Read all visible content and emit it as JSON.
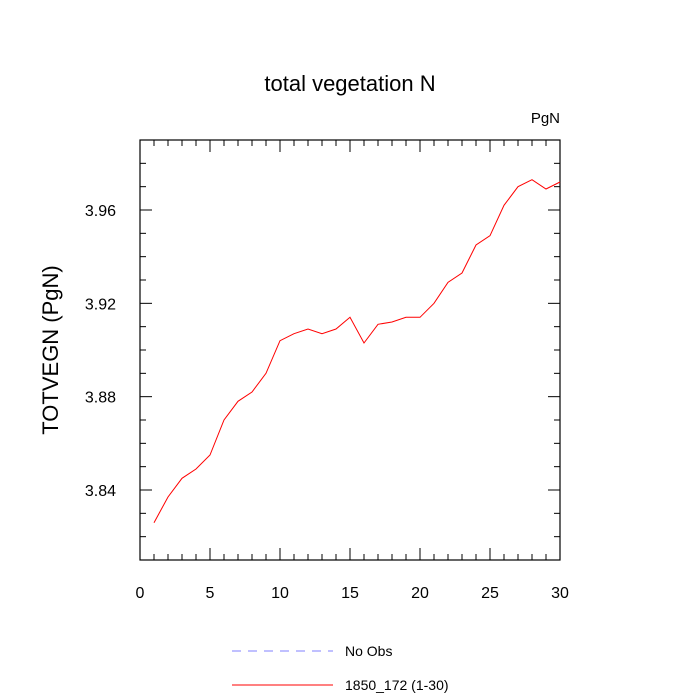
{
  "chart_data": {
    "type": "line",
    "title": "total vegetation N",
    "units_label": "PgN",
    "xlabel": "",
    "ylabel": "TOTVEGN  (PgN)",
    "xlim": [
      0,
      30
    ],
    "ylim": [
      3.81,
      3.99
    ],
    "x_ticks": [
      0,
      5,
      10,
      15,
      20,
      25,
      30
    ],
    "x_tick_labels": [
      "0",
      "5",
      "10",
      "15",
      "20",
      "25",
      "30"
    ],
    "y_ticks": [
      3.84,
      3.88,
      3.92,
      3.96
    ],
    "y_tick_labels": [
      "3.84",
      "3.88",
      "3.92",
      "3.96"
    ],
    "grid": false,
    "legend_position": "bottom-center",
    "series": [
      {
        "name": "No Obs",
        "color": "#8080ff",
        "dashed": true,
        "x": [],
        "y": []
      },
      {
        "name": "1850_172 (1-30)",
        "color": "#ff0000",
        "dashed": false,
        "x": [
          1,
          2,
          3,
          4,
          5,
          6,
          7,
          8,
          9,
          10,
          11,
          12,
          13,
          14,
          15,
          16,
          17,
          18,
          19,
          20,
          21,
          22,
          23,
          24,
          25,
          26,
          27,
          28,
          29,
          30
        ],
        "y": [
          3.826,
          3.837,
          3.845,
          3.849,
          3.855,
          3.87,
          3.878,
          3.882,
          3.89,
          3.904,
          3.907,
          3.909,
          3.907,
          3.909,
          3.914,
          3.903,
          3.911,
          3.912,
          3.914,
          3.914,
          3.92,
          3.929,
          3.933,
          3.945,
          3.949,
          3.962,
          3.97,
          3.973,
          3.969,
          3.972
        ]
      }
    ]
  }
}
